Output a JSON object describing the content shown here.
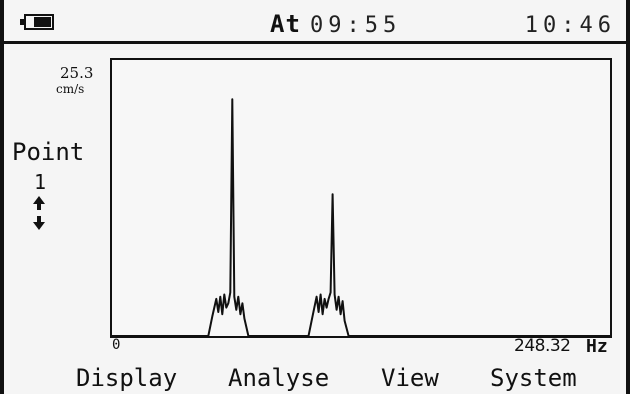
{
  "header": {
    "battery_icon": "battery-icon",
    "at_label": "At",
    "at_time": "09:55",
    "clock": "10:46"
  },
  "sidebar": {
    "y_max": "25.3",
    "y_unit": "cm/s",
    "point_label": "Point",
    "point_number": "1",
    "updown_icon": "up-down-arrows-icon"
  },
  "chart_data": {
    "type": "line",
    "x_range": [
      0,
      248.32
    ],
    "x_unit": "Hz",
    "y_range": [
      0,
      25.3
    ],
    "y_unit": "cm/s",
    "x_min_label": "0",
    "x_max_label": "248.32",
    "peaks": [
      {
        "x": 60,
        "y": 21.7
      },
      {
        "x": 110,
        "y": 13.0
      }
    ],
    "series": [
      {
        "values": [
          [
            0,
            0
          ],
          [
            48,
            0
          ],
          [
            50,
            1.8
          ],
          [
            52,
            3.4
          ],
          [
            53,
            2.2
          ],
          [
            54,
            3.6
          ],
          [
            55,
            2.0
          ],
          [
            56,
            3.8
          ],
          [
            57,
            2.6
          ],
          [
            58,
            3.0
          ],
          [
            59,
            4.0
          ],
          [
            60,
            21.7
          ],
          [
            61,
            3.6
          ],
          [
            62,
            2.4
          ],
          [
            63,
            3.6
          ],
          [
            64,
            2.0
          ],
          [
            65,
            3.0
          ],
          [
            66,
            1.6
          ],
          [
            68,
            0
          ],
          [
            98,
            0
          ],
          [
            100,
            1.8
          ],
          [
            102,
            3.6
          ],
          [
            103,
            2.2
          ],
          [
            104,
            3.8
          ],
          [
            105,
            2.0
          ],
          [
            106,
            3.4
          ],
          [
            107,
            2.6
          ],
          [
            108,
            3.4
          ],
          [
            109,
            4.0
          ],
          [
            110,
            13.0
          ],
          [
            111,
            3.8
          ],
          [
            112,
            2.4
          ],
          [
            113,
            3.6
          ],
          [
            114,
            2.0
          ],
          [
            115,
            3.2
          ],
          [
            116,
            1.4
          ],
          [
            118,
            0
          ],
          [
            248.32,
            0
          ]
        ]
      }
    ]
  },
  "softkeys": {
    "display": "Display",
    "analyse": "Analyse",
    "view": "View",
    "system": "System"
  }
}
